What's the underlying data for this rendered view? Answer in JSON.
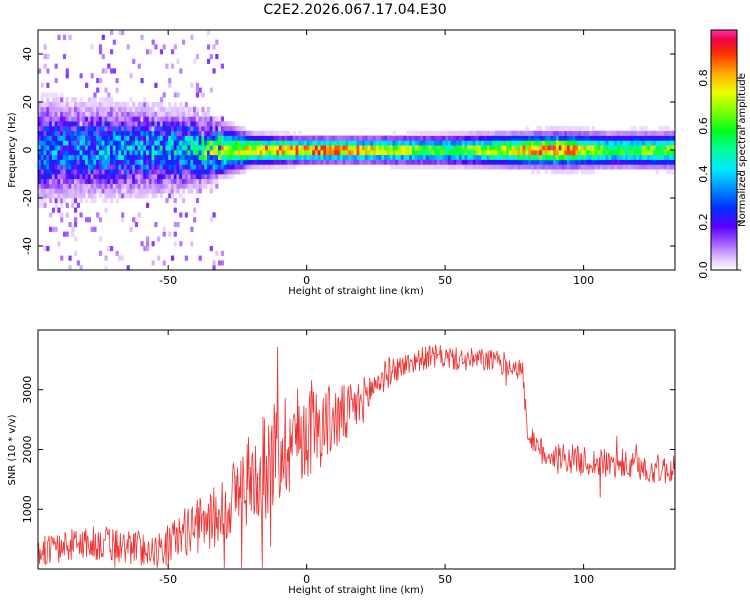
{
  "page": {
    "title": "C2E2.2026.067.17.04.E30"
  },
  "chart_data": [
    {
      "type": "heatmap",
      "xlabel": "Height of straight line (km)",
      "ylabel": "Frequency (Hz)",
      "xlim": [
        -97,
        133
      ],
      "ylim": [
        -50,
        50
      ],
      "xticks": [
        -50,
        0,
        50,
        100
      ],
      "yticks": [
        -40,
        -20,
        0,
        20,
        40
      ],
      "colorbar": {
        "label": "Normalized spectral amplitude",
        "ticks": [
          0.0,
          0.2,
          0.4,
          0.6,
          0.8
        ],
        "tick_labels": [
          "0.0",
          "0.2",
          "0.4",
          "0.6",
          "0.8"
        ],
        "range": [
          0,
          1
        ]
      },
      "intensity_profile": [
        {
          "x": -95,
          "spread_hz": 10,
          "peak": 0.35
        },
        {
          "x": -70,
          "spread_hz": 9,
          "peak": 0.4
        },
        {
          "x": -45,
          "spread_hz": 8,
          "peak": 0.45
        },
        {
          "x": -30,
          "spread_hz": 5,
          "peak": 0.7
        },
        {
          "x": -20,
          "spread_hz": 3,
          "peak": 0.85
        },
        {
          "x": 0,
          "spread_hz": 2.5,
          "peak": 0.95
        },
        {
          "x": 20,
          "spread_hz": 2.5,
          "peak": 0.9
        },
        {
          "x": 50,
          "spread_hz": 3,
          "peak": 0.6
        },
        {
          "x": 90,
          "spread_hz": 3.5,
          "peak": 0.97
        },
        {
          "x": 110,
          "spread_hz": 3.5,
          "peak": 0.6
        },
        {
          "x": 125,
          "spread_hz": 3.5,
          "peak": 0.7
        }
      ]
    },
    {
      "type": "line",
      "xlabel": "Height of straight line (km)",
      "ylabel": "SNR (10 * v/v)",
      "xlim": [
        -97,
        133
      ],
      "ylim": [
        0,
        4000
      ],
      "xticks": [
        -50,
        0,
        50,
        100
      ],
      "yticks": [
        1000,
        2000,
        3000
      ],
      "color": "#ee3333",
      "series": [
        {
          "name": "SNR",
          "x": [
            -97,
            -90,
            -80,
            -70,
            -60,
            -55,
            -50,
            -45,
            -40,
            -35,
            -30,
            -25,
            -20,
            -15,
            -10,
            -5,
            0,
            5,
            10,
            15,
            20,
            25,
            30,
            35,
            40,
            45,
            50,
            55,
            60,
            65,
            70,
            75,
            78,
            80,
            85,
            90,
            95,
            100,
            110,
            120,
            133
          ],
          "mean": [
            300,
            350,
            450,
            400,
            350,
            300,
            400,
            600,
            700,
            800,
            1000,
            1300,
            1500,
            1700,
            2000,
            2200,
            2300,
            2400,
            2500,
            2600,
            2800,
            3100,
            3300,
            3400,
            3500,
            3550,
            3550,
            3500,
            3500,
            3500,
            3450,
            3400,
            3300,
            2100,
            1950,
            1900,
            1850,
            1800,
            1750,
            1700,
            1650
          ],
          "noise": [
            250,
            250,
            300,
            300,
            300,
            250,
            350,
            400,
            450,
            500,
            600,
            700,
            800,
            900,
            1000,
            900,
            800,
            700,
            600,
            500,
            400,
            300,
            250,
            200,
            200,
            200,
            200,
            200,
            200,
            200,
            200,
            200,
            200,
            250,
            250,
            250,
            250,
            250,
            250,
            250,
            250
          ]
        }
      ]
    }
  ]
}
